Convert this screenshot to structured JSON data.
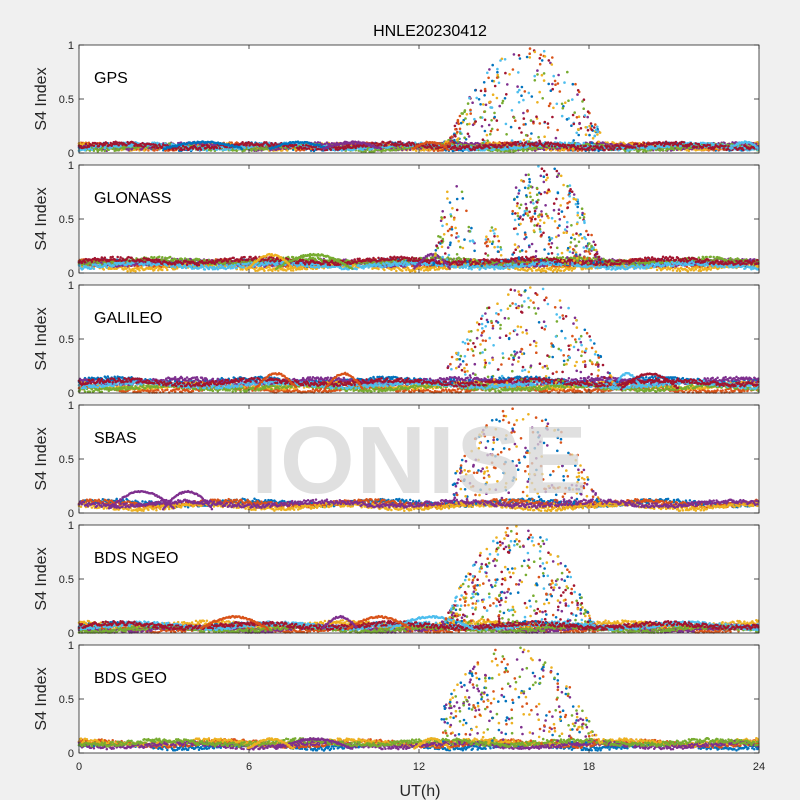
{
  "figure": {
    "title": "HNLE20230412",
    "watermark": "IONISE"
  },
  "colors": [
    "#0072BD",
    "#D95319",
    "#EDB120",
    "#7E2F8E",
    "#77AC30",
    "#4DBEEE",
    "#A2142F"
  ],
  "chart_data": [
    {
      "type": "scatter",
      "panel_label": "GPS",
      "ylabel": "S4 Index",
      "xlim": [
        0,
        24
      ],
      "ylim": [
        0,
        1
      ],
      "xticks": [
        0,
        6,
        12,
        18,
        24
      ],
      "yticks": [
        0,
        0.5,
        1
      ],
      "baseline": [
        0.03,
        0.1
      ],
      "bursts": [
        {
          "start": 12.9,
          "end": 18.4,
          "peak_center": 15.8,
          "peak_max": 0.96,
          "density": 320
        }
      ],
      "series_count": 7
    },
    {
      "type": "scatter",
      "panel_label": "GLONASS",
      "ylabel": "S4 Index",
      "xlim": [
        0,
        24
      ],
      "ylim": [
        0,
        1
      ],
      "xticks": [
        0,
        6,
        12,
        18,
        24
      ],
      "yticks": [
        0,
        0.5,
        1
      ],
      "baseline": [
        0.03,
        0.17
      ],
      "bursts": [
        {
          "start": 12.5,
          "end": 14.0,
          "peak_center": 13.3,
          "peak_max": 0.85,
          "density": 80
        },
        {
          "start": 14.2,
          "end": 15.0,
          "peak_center": 14.6,
          "peak_max": 0.45,
          "density": 40
        },
        {
          "start": 15.3,
          "end": 18.5,
          "peak_center": 16.4,
          "peak_max": 0.98,
          "density": 320
        }
      ],
      "series_count": 7
    },
    {
      "type": "scatter",
      "panel_label": "GALILEO",
      "ylabel": "S4 Index",
      "xlim": [
        0,
        24
      ],
      "ylim": [
        0,
        1
      ],
      "xticks": [
        0,
        6,
        12,
        18,
        24
      ],
      "yticks": [
        0,
        0.5,
        1
      ],
      "baseline": [
        0.03,
        0.18
      ],
      "bursts": [
        {
          "start": 13.0,
          "end": 19.0,
          "peak_center": 15.8,
          "peak_max": 0.97,
          "density": 320
        }
      ],
      "series_count": 7
    },
    {
      "type": "scatter",
      "panel_label": "SBAS",
      "ylabel": "S4 Index",
      "xlim": [
        0,
        24
      ],
      "ylim": [
        0,
        1
      ],
      "xticks": [
        0,
        6,
        12,
        18,
        24
      ],
      "yticks": [
        0,
        0.5,
        1
      ],
      "baseline": [
        0.05,
        0.2
      ],
      "bursts": [
        {
          "start": 13.2,
          "end": 18.5,
          "peak_center": 15.6,
          "peak_max": 0.97,
          "density": 300
        }
      ],
      "series_count": 4
    },
    {
      "type": "scatter",
      "panel_label": "BDS NGEO",
      "ylabel": "S4 Index",
      "xlim": [
        0,
        24
      ],
      "ylim": [
        0,
        1
      ],
      "xticks": [
        0,
        6,
        12,
        18,
        24
      ],
      "yticks": [
        0,
        0.5,
        1
      ],
      "baseline": [
        0.03,
        0.15
      ],
      "bursts": [
        {
          "start": 12.8,
          "end": 18.2,
          "peak_center": 15.5,
          "peak_max": 0.98,
          "density": 420
        }
      ],
      "series_count": 7
    },
    {
      "type": "scatter",
      "panel_label": "BDS GEO",
      "ylabel": "S4 Index",
      "xlim": [
        0,
        24
      ],
      "ylim": [
        0,
        1
      ],
      "xticks": [
        0,
        6,
        12,
        18,
        24
      ],
      "yticks": [
        0,
        0.5,
        1
      ],
      "baseline": [
        0.05,
        0.13
      ],
      "bursts": [
        {
          "start": 12.8,
          "end": 18.5,
          "peak_center": 15.3,
          "peak_max": 0.97,
          "density": 340
        }
      ],
      "series_count": 5
    }
  ],
  "xlabel": "UT(h)"
}
